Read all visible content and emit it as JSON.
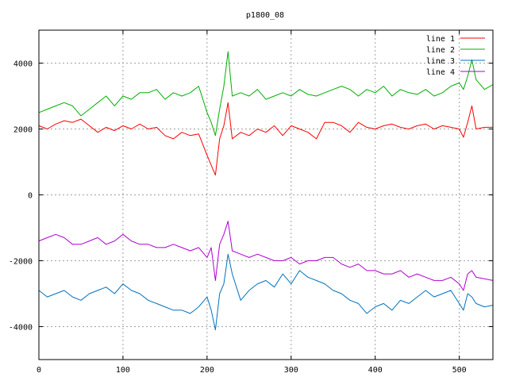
{
  "chart_data": {
    "type": "line",
    "title": "p1800_08",
    "xlabel": "",
    "ylabel": "",
    "xlim": [
      0,
      540
    ],
    "ylim": [
      -5000,
      5000
    ],
    "x_ticks": [
      0,
      100,
      200,
      300,
      400,
      500
    ],
    "y_ticks": [
      -4000,
      -2000,
      0,
      2000,
      4000
    ],
    "grid": true,
    "legend_position": "top-right",
    "x": [
      0,
      10,
      20,
      30,
      40,
      50,
      60,
      70,
      80,
      90,
      100,
      110,
      120,
      130,
      140,
      150,
      160,
      170,
      180,
      190,
      200,
      205,
      210,
      215,
      220,
      225,
      230,
      240,
      250,
      260,
      270,
      280,
      290,
      300,
      310,
      320,
      330,
      340,
      350,
      360,
      370,
      380,
      390,
      400,
      410,
      420,
      430,
      440,
      450,
      460,
      470,
      480,
      490,
      500,
      505,
      510,
      515,
      520,
      530,
      540
    ],
    "series": [
      {
        "name": "line 1",
        "color": "#ff0000",
        "values": [
          2100,
          2000,
          2150,
          2250,
          2200,
          2300,
          2100,
          1900,
          2050,
          1950,
          2100,
          2000,
          2150,
          2000,
          2050,
          1800,
          1700,
          1900,
          1800,
          1850,
          1200,
          900,
          600,
          1700,
          2100,
          2800,
          1700,
          1900,
          1800,
          2000,
          1900,
          2100,
          1800,
          2100,
          2000,
          1900,
          1700,
          2200,
          2200,
          2100,
          1900,
          2200,
          2050,
          2000,
          2100,
          2150,
          2050,
          2000,
          2100,
          2150,
          2000,
          2100,
          2050,
          2000,
          1750,
          2200,
          2700,
          2000,
          2050,
          2050
        ]
      },
      {
        "name": "line 2",
        "color": "#00b000",
        "values": [
          2500,
          2600,
          2700,
          2800,
          2700,
          2400,
          2600,
          2800,
          3000,
          2700,
          3000,
          2900,
          3100,
          3100,
          3200,
          2900,
          3100,
          3000,
          3100,
          3300,
          2500,
          2200,
          1800,
          2600,
          3300,
          4350,
          3000,
          3100,
          3000,
          3200,
          2900,
          3000,
          3100,
          3000,
          3200,
          3050,
          3000,
          3100,
          3200,
          3300,
          3200,
          3000,
          3200,
          3100,
          3300,
          3000,
          3200,
          3100,
          3050,
          3200,
          3000,
          3100,
          3300,
          3400,
          3200,
          3600,
          4100,
          3500,
          3200,
          3350
        ]
      },
      {
        "name": "line 3",
        "color": "#0072bd",
        "values": [
          -2900,
          -3100,
          -3000,
          -2900,
          -3100,
          -3200,
          -3000,
          -2900,
          -2800,
          -3000,
          -2700,
          -2900,
          -3000,
          -3200,
          -3300,
          -3400,
          -3500,
          -3500,
          -3600,
          -3400,
          -3100,
          -3500,
          -4100,
          -3000,
          -2700,
          -1800,
          -2400,
          -3200,
          -2900,
          -2700,
          -2600,
          -2800,
          -2400,
          -2700,
          -2300,
          -2500,
          -2600,
          -2700,
          -2900,
          -3000,
          -3200,
          -3300,
          -3600,
          -3400,
          -3300,
          -3500,
          -3200,
          -3300,
          -3100,
          -2900,
          -3100,
          -3000,
          -2900,
          -3300,
          -3500,
          -3000,
          -3100,
          -3300,
          -3400,
          -3350
        ]
      },
      {
        "name": "line 4",
        "color": "#b000d0",
        "values": [
          -1400,
          -1300,
          -1200,
          -1300,
          -1500,
          -1500,
          -1400,
          -1300,
          -1500,
          -1400,
          -1200,
          -1400,
          -1500,
          -1500,
          -1600,
          -1600,
          -1500,
          -1600,
          -1700,
          -1600,
          -1900,
          -1600,
          -2600,
          -1500,
          -1200,
          -800,
          -1700,
          -1800,
          -1900,
          -1800,
          -1900,
          -2000,
          -2000,
          -1900,
          -2100,
          -2000,
          -2000,
          -1900,
          -1900,
          -2100,
          -2200,
          -2100,
          -2300,
          -2300,
          -2400,
          -2400,
          -2300,
          -2500,
          -2400,
          -2500,
          -2600,
          -2600,
          -2500,
          -2700,
          -2900,
          -2400,
          -2300,
          -2500,
          -2550,
          -2600
        ]
      }
    ]
  }
}
